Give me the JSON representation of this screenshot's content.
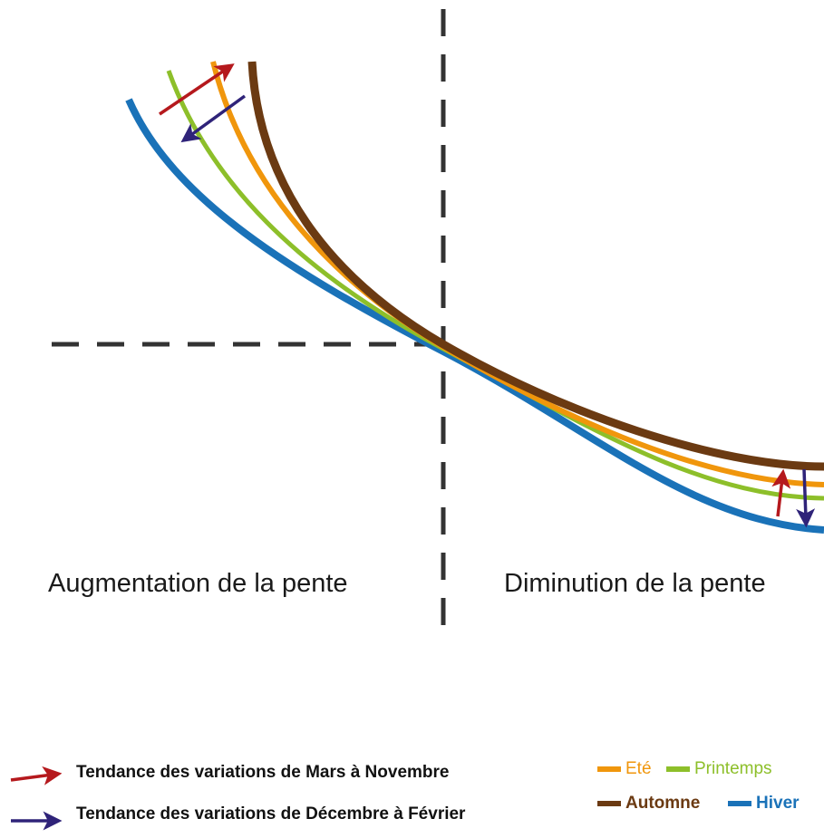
{
  "labels": {
    "left_region": "Augmentation de la pente",
    "right_region": "Diminution de la pente"
  },
  "legend": {
    "trend_mar_nov": {
      "text": "Tendance des variations de Mars à Novembre",
      "color": "#b5191d"
    },
    "trend_dec_feb": {
      "text": "Tendance des variations de Décembre à Février",
      "color": "#2f2379"
    },
    "seasons": [
      {
        "key": "ete",
        "label": "Eté",
        "color": "#f0960c",
        "bold": false
      },
      {
        "key": "printemps",
        "label": "Printemps",
        "color": "#8dbf2a",
        "bold": false
      },
      {
        "key": "automne",
        "label": "Automne",
        "color": "#6b3a12",
        "bold": true
      },
      {
        "key": "hiver",
        "label": "Hiver",
        "color": "#1a72b8",
        "bold": true
      }
    ]
  },
  "colors": {
    "axis_dash": "#333333"
  }
}
